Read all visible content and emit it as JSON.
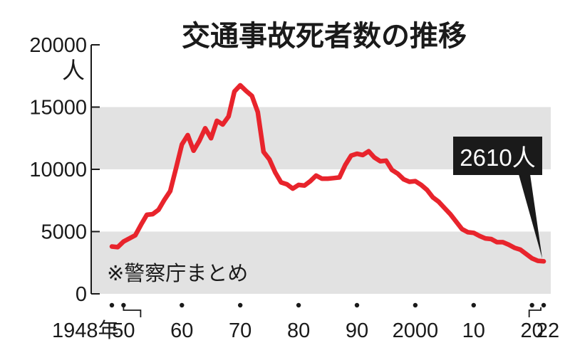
{
  "chart_data": {
    "type": "line",
    "title": "交通事故死者数の推移",
    "ylabel": "人",
    "source_note": "※警察庁まとめ",
    "ylim": [
      0,
      20000
    ],
    "yticks": [
      0,
      5000,
      10000,
      15000,
      20000
    ],
    "ytick_labels": [
      "0",
      "5000",
      "10000",
      "15000",
      "20000"
    ],
    "xlim": [
      1948,
      2022
    ],
    "xticks": [
      {
        "x": 1948,
        "label": "1948年"
      },
      {
        "x": 1950,
        "label": "50"
      },
      {
        "x": 1960,
        "label": "60"
      },
      {
        "x": 1970,
        "label": "70"
      },
      {
        "x": 1980,
        "label": "80"
      },
      {
        "x": 1990,
        "label": "90"
      },
      {
        "x": 2000,
        "label": "2000"
      },
      {
        "x": 2010,
        "label": "10"
      },
      {
        "x": 2020,
        "label": "20"
      },
      {
        "x": 2022,
        "label": "22"
      }
    ],
    "bands": [
      [
        0,
        5000
      ],
      [
        10000,
        15000
      ]
    ],
    "colors": {
      "line": "#e8242c",
      "band": "#e2e2e2",
      "callout_bg": "#1a1a1a",
      "callout_text": "#ffffff"
    },
    "series": [
      {
        "values": [
          [
            1948,
            3800
          ],
          [
            1949,
            3750
          ],
          [
            1950,
            4200
          ],
          [
            1951,
            4450
          ],
          [
            1952,
            4700
          ],
          [
            1953,
            5550
          ],
          [
            1954,
            6350
          ],
          [
            1955,
            6400
          ],
          [
            1956,
            6750
          ],
          [
            1957,
            7550
          ],
          [
            1958,
            8250
          ],
          [
            1959,
            10100
          ],
          [
            1960,
            12000
          ],
          [
            1961,
            12750
          ],
          [
            1962,
            11500
          ],
          [
            1963,
            12300
          ],
          [
            1964,
            13300
          ],
          [
            1965,
            12500
          ],
          [
            1966,
            13900
          ],
          [
            1967,
            13600
          ],
          [
            1968,
            14250
          ],
          [
            1969,
            16250
          ],
          [
            1970,
            16750
          ],
          [
            1971,
            16300
          ],
          [
            1972,
            15900
          ],
          [
            1973,
            14600
          ],
          [
            1974,
            11400
          ],
          [
            1975,
            10800
          ],
          [
            1976,
            9750
          ],
          [
            1977,
            8950
          ],
          [
            1978,
            8800
          ],
          [
            1979,
            8450
          ],
          [
            1980,
            8750
          ],
          [
            1981,
            8700
          ],
          [
            1982,
            9050
          ],
          [
            1983,
            9500
          ],
          [
            1984,
            9250
          ],
          [
            1985,
            9250
          ],
          [
            1986,
            9300
          ],
          [
            1987,
            9350
          ],
          [
            1988,
            10350
          ],
          [
            1989,
            11100
          ],
          [
            1990,
            11250
          ],
          [
            1991,
            11150
          ],
          [
            1992,
            11450
          ],
          [
            1993,
            10950
          ],
          [
            1994,
            10650
          ],
          [
            1995,
            10700
          ],
          [
            1996,
            9950
          ],
          [
            1997,
            9650
          ],
          [
            1998,
            9200
          ],
          [
            1999,
            9000
          ],
          [
            2000,
            9050
          ],
          [
            2001,
            8750
          ],
          [
            2002,
            8350
          ],
          [
            2003,
            7750
          ],
          [
            2004,
            7400
          ],
          [
            2005,
            6900
          ],
          [
            2006,
            6400
          ],
          [
            2007,
            5800
          ],
          [
            2008,
            5200
          ],
          [
            2009,
            4950
          ],
          [
            2010,
            4900
          ],
          [
            2011,
            4650
          ],
          [
            2012,
            4450
          ],
          [
            2013,
            4400
          ],
          [
            2014,
            4150
          ],
          [
            2015,
            4150
          ],
          [
            2016,
            3950
          ],
          [
            2017,
            3700
          ],
          [
            2018,
            3550
          ],
          [
            2019,
            3200
          ],
          [
            2020,
            2850
          ],
          [
            2021,
            2650
          ],
          [
            2022,
            2610
          ]
        ]
      }
    ],
    "annotations": [
      {
        "x": 2022,
        "y": 2610,
        "label": "2610人"
      }
    ]
  }
}
